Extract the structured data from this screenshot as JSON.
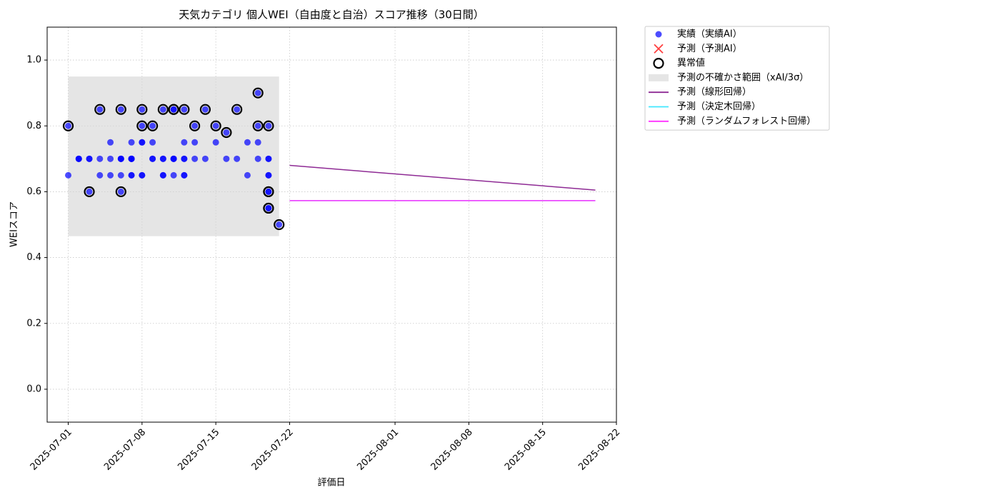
{
  "chart_data": {
    "type": "line",
    "title": "天気カテゴリ 個人WEI（自由度と自治）スコア推移（30日間）",
    "xlabel": "評価日",
    "ylabel": "WEIスコア",
    "xlim": [
      "2025-06-29",
      "2025-08-22"
    ],
    "xticks": [
      "2025-07-01",
      "2025-07-08",
      "2025-07-15",
      "2025-07-22",
      "2025-08-01",
      "2025-08-08",
      "2025-08-15",
      "2025-08-22"
    ],
    "ylim": [
      -0.1,
      1.1
    ],
    "yticks": [
      {
        "value": 0,
        "label": "0.0"
      },
      0.2,
      0.4,
      0.6,
      0.8,
      {
        "value": 1,
        "label": "1.0"
      }
    ],
    "grid": true,
    "legend": "outside-upper-right",
    "series": [
      {
        "name": "実績（実績AI）",
        "type": "scatter",
        "marker": "dot",
        "color": "#0000ff",
        "x": [
          "2025-07-01",
          "2025-07-01",
          "2025-07-02",
          "2025-07-02",
          "2025-07-02",
          "2025-07-03",
          "2025-07-03",
          "2025-07-03",
          "2025-07-04",
          "2025-07-04",
          "2025-07-04",
          "2025-07-05",
          "2025-07-05",
          "2025-07-05",
          "2025-07-06",
          "2025-07-06",
          "2025-07-06",
          "2025-07-06",
          "2025-07-06",
          "2025-07-06",
          "2025-07-07",
          "2025-07-07",
          "2025-07-07",
          "2025-07-07",
          "2025-07-07",
          "2025-07-07",
          "2025-07-07",
          "2025-07-08",
          "2025-07-08",
          "2025-07-08",
          "2025-07-08",
          "2025-07-08",
          "2025-07-08",
          "2025-07-09",
          "2025-07-09",
          "2025-07-09",
          "2025-07-09",
          "2025-07-10",
          "2025-07-10",
          "2025-07-10",
          "2025-07-10",
          "2025-07-10",
          "2025-07-11",
          "2025-07-11",
          "2025-07-11",
          "2025-07-11",
          "2025-07-11",
          "2025-07-11",
          "2025-07-12",
          "2025-07-12",
          "2025-07-12",
          "2025-07-12",
          "2025-07-12",
          "2025-07-12",
          "2025-07-13",
          "2025-07-13",
          "2025-07-13",
          "2025-07-14",
          "2025-07-14",
          "2025-07-15",
          "2025-07-15",
          "2025-07-16",
          "2025-07-16",
          "2025-07-17",
          "2025-07-17",
          "2025-07-18",
          "2025-07-18",
          "2025-07-19",
          "2025-07-19",
          "2025-07-19",
          "2025-07-19",
          "2025-07-20",
          "2025-07-20",
          "2025-07-20",
          "2025-07-20",
          "2025-07-20",
          "2025-07-20",
          "2025-07-20",
          "2025-07-20",
          "2025-07-20",
          "2025-07-21"
        ],
        "values": [
          0.8,
          0.65,
          0.7,
          0.7,
          0.7,
          0.7,
          0.7,
          0.6,
          0.7,
          0.85,
          0.65,
          0.65,
          0.75,
          0.7,
          0.7,
          0.6,
          0.7,
          0.85,
          0.65,
          0.7,
          0.75,
          0.7,
          0.7,
          0.7,
          0.65,
          0.7,
          0.65,
          0.65,
          0.75,
          0.75,
          0.65,
          0.85,
          0.8,
          0.8,
          0.75,
          0.7,
          0.7,
          0.85,
          0.65,
          0.65,
          0.7,
          0.7,
          0.85,
          0.7,
          0.65,
          0.7,
          0.85,
          0.7,
          0.65,
          0.65,
          0.75,
          0.7,
          0.85,
          0.7,
          0.8,
          0.7,
          0.75,
          0.85,
          0.7,
          0.8,
          0.75,
          0.78,
          0.7,
          0.85,
          0.7,
          0.75,
          0.65,
          0.9,
          0.8,
          0.75,
          0.7,
          0.8,
          0.7,
          0.6,
          0.65,
          0.55,
          0.7,
          0.6,
          0.55,
          0.65,
          0.5
        ]
      },
      {
        "name": "予測（予測AI）",
        "type": "scatter",
        "marker": "x",
        "color": "#ff0000",
        "x": [],
        "values": []
      },
      {
        "name": "異常値",
        "type": "scatter",
        "marker": "ring",
        "color": "#000000",
        "x": [
          "2025-07-01",
          "2025-07-03",
          "2025-07-04",
          "2025-07-06",
          "2025-07-06",
          "2025-07-08",
          "2025-07-08",
          "2025-07-09",
          "2025-07-10",
          "2025-07-11",
          "2025-07-11",
          "2025-07-12",
          "2025-07-13",
          "2025-07-14",
          "2025-07-15",
          "2025-07-16",
          "2025-07-17",
          "2025-07-19",
          "2025-07-19",
          "2025-07-20",
          "2025-07-20",
          "2025-07-20",
          "2025-07-20",
          "2025-07-20",
          "2025-07-21"
        ],
        "values": [
          0.8,
          0.6,
          0.85,
          0.6,
          0.85,
          0.85,
          0.8,
          0.8,
          0.85,
          0.85,
          0.85,
          0.85,
          0.8,
          0.85,
          0.8,
          0.78,
          0.85,
          0.9,
          0.8,
          0.8,
          0.6,
          0.55,
          0.6,
          0.55,
          0.5
        ]
      },
      {
        "name": "予測の不確かさ範囲（xAI/3σ）",
        "type": "band",
        "color": "#d3d3d3",
        "x": [
          "2025-07-01",
          "2025-07-21"
        ],
        "lower": [
          0.465,
          0.465
        ],
        "upper": [
          0.95,
          0.95
        ]
      },
      {
        "name": "予測（線形回帰）",
        "type": "line",
        "color": "#8e2a94",
        "x": [
          "2025-07-22",
          "2025-08-20"
        ],
        "values": [
          0.68,
          0.605
        ]
      },
      {
        "name": "予測（決定木回帰）",
        "type": "line",
        "color": "#40e8ff",
        "x": [
          "2025-07-22",
          "2025-08-20"
        ],
        "values": [
          0.573,
          0.573
        ]
      },
      {
        "name": "予測（ランダムフォレスト回帰）",
        "type": "line",
        "color": "#ff30ff",
        "x": [
          "2025-07-22",
          "2025-08-20"
        ],
        "values": [
          0.573,
          0.573
        ]
      }
    ]
  }
}
